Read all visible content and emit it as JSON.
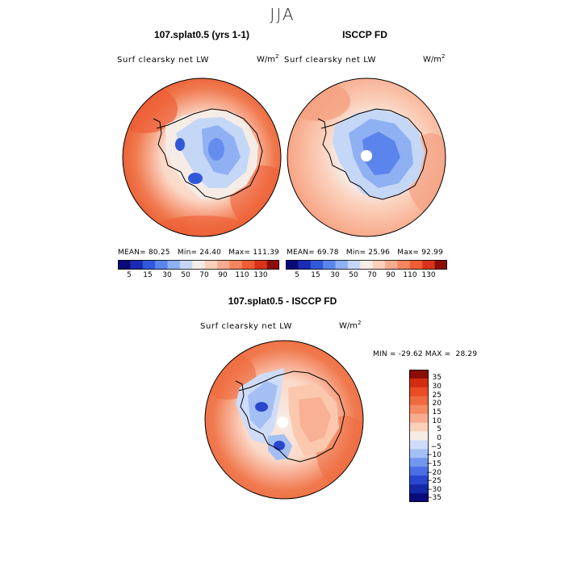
{
  "season": "JJA",
  "units": {
    "base": "W/m",
    "sup": "2"
  },
  "panels": [
    {
      "title": "107.splat0.5 (yrs 1-1)",
      "field": "Surf clearsky net LW",
      "mean": "80.25",
      "min": "24.40",
      "max": "111.39"
    },
    {
      "title": "ISCCP FD",
      "field": "Surf clearsky net LW",
      "mean": "69.78",
      "min": "25.96",
      "max": "92.99"
    }
  ],
  "diff_panel": {
    "title": "107.splat0.5 - ISCCP FD",
    "field": "Surf clearsky net LW",
    "min": "-29.62",
    "max": "28.29"
  },
  "colors": {
    "abs_scale": [
      "#0a0a7a",
      "#1a2bb0",
      "#3158d8",
      "#5b85ec",
      "#8fb0f2",
      "#c5d7f7",
      "#f6ece6",
      "#fbd0bb",
      "#f7ab8f",
      "#f3855f",
      "#ee5e36",
      "#d8331a",
      "#8b0d07"
    ],
    "diff_scale": [
      "#0a0a7a",
      "#1428a8",
      "#2a46cf",
      "#4a6ee6",
      "#7396ef",
      "#a3bff4",
      "#cfdcf8",
      "#f6ece6",
      "#fbd0bb",
      "#f7ab8f",
      "#f38a63",
      "#ee6a3e",
      "#e84d24",
      "#d12d12",
      "#8b0d07"
    ]
  },
  "chart_data": [
    {
      "type": "heatmap",
      "title": "107.splat0.5 (yrs 1-1)",
      "subtitle": "Surf clearsky net LW",
      "units": "W/m2",
      "projection": "south polar stereographic",
      "contour_levels": [
        5,
        10,
        15,
        20,
        30,
        40,
        50,
        60,
        70,
        80,
        90,
        100,
        110,
        120,
        130
      ],
      "colorbar_tick_labels": [
        "5",
        "15",
        "30",
        "50",
        "70",
        "90",
        "110",
        "130"
      ],
      "mean": 80.25,
      "min": 24.4,
      "max": 111.39
    },
    {
      "type": "heatmap",
      "title": "ISCCP FD",
      "subtitle": "Surf clearsky net LW",
      "units": "W/m2",
      "projection": "south polar stereographic",
      "contour_levels": [
        5,
        10,
        15,
        20,
        30,
        40,
        50,
        60,
        70,
        80,
        90,
        100,
        110,
        120,
        130
      ],
      "colorbar_tick_labels": [
        "5",
        "15",
        "30",
        "50",
        "70",
        "90",
        "110",
        "130"
      ],
      "mean": 69.78,
      "min": 25.96,
      "max": 92.99
    },
    {
      "type": "heatmap",
      "title": "107.splat0.5 - ISCCP FD",
      "subtitle": "Surf clearsky net LW",
      "units": "W/m2",
      "projection": "south polar stereographic",
      "contour_levels": [
        -35,
        -30,
        -25,
        -20,
        -15,
        -10,
        -5,
        0,
        5,
        10,
        15,
        20,
        25,
        30,
        35
      ],
      "colorbar_tick_labels": [
        "35",
        "30",
        "25",
        "20",
        "15",
        "10",
        "5",
        "0",
        "−5",
        "−10",
        "−15",
        "−20",
        "−25",
        "−30",
        "−35"
      ],
      "min": -29.62,
      "max": 28.29
    }
  ]
}
